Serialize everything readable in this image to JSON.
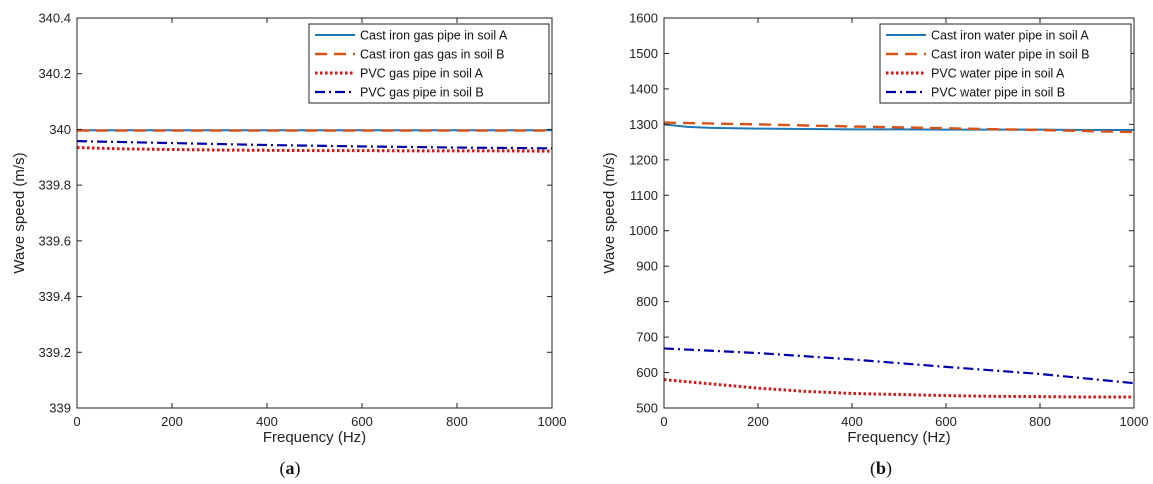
{
  "chart_data": [
    {
      "type": "line",
      "panel_label": {
        "open": "(",
        "letter": "a",
        "close": ")"
      },
      "xlabel": "Frequency (Hz)",
      "ylabel": "Wave speed (m/s)",
      "xlim": [
        0,
        1000
      ],
      "ylim": [
        339,
        340.4
      ],
      "xticks": [
        "0",
        "200",
        "400",
        "600",
        "800",
        "1000"
      ],
      "yticks": [
        "339",
        "339.2",
        "339.4",
        "339.6",
        "339.8",
        "340",
        "340.2",
        "340.4"
      ],
      "grid": false,
      "legend_position": "top-right",
      "series": [
        {
          "name": "Cast iron gas pipe in soil A",
          "color": "#1f77b4",
          "style": "solid",
          "x": [
            0,
            200,
            400,
            600,
            800,
            1000
          ],
          "y": [
            339.997,
            339.997,
            339.997,
            339.997,
            339.997,
            339.997
          ]
        },
        {
          "name": "Cast iron gas gas in soil B",
          "color": "#d95319",
          "style": "dashed",
          "x": [
            0,
            200,
            400,
            600,
            800,
            1000
          ],
          "y": [
            339.996,
            339.996,
            339.996,
            339.996,
            339.996,
            339.996
          ]
        },
        {
          "name": "PVC gas pipe in soil A",
          "color": "#dd1111",
          "style": "dotted",
          "x": [
            0,
            100,
            200,
            300,
            400,
            500,
            600,
            700,
            800,
            900,
            1000
          ],
          "y": [
            339.935,
            339.93,
            339.928,
            339.926,
            339.925,
            339.924,
            339.924,
            339.923,
            339.923,
            339.923,
            339.922
          ]
        },
        {
          "name": "PVC gas pipe in soil B",
          "color": "#0000aa",
          "style": "dashdot",
          "x": [
            0,
            200,
            400,
            600,
            800,
            1000
          ],
          "y": [
            339.958,
            339.951,
            339.944,
            339.939,
            339.935,
            339.932
          ]
        }
      ]
    },
    {
      "type": "line",
      "panel_label": {
        "open": "(",
        "letter": "b",
        "close": ")"
      },
      "xlabel": "Frequency (Hz)",
      "ylabel": "Wave speed (m/s)",
      "xlim": [
        0,
        1000
      ],
      "ylim": [
        500,
        1600
      ],
      "xticks": [
        "0",
        "200",
        "400",
        "600",
        "800",
        "1000"
      ],
      "yticks": [
        "500",
        "600",
        "700",
        "800",
        "900",
        "1000",
        "1100",
        "1200",
        "1300",
        "1400",
        "1500",
        "1600"
      ],
      "grid": false,
      "legend_position": "top-right",
      "series": [
        {
          "name": "Cast iron water pipe in soil A",
          "color": "#1f77b4",
          "style": "solid",
          "x": [
            0,
            50,
            100,
            200,
            300,
            400,
            500,
            600,
            700,
            800,
            900,
            1000
          ],
          "y": [
            1300,
            1293,
            1290,
            1288,
            1287,
            1286,
            1286,
            1285,
            1285,
            1285,
            1284,
            1284
          ]
        },
        {
          "name": "Cast iron water pipe in soil B",
          "color": "#d95319",
          "style": "dashed",
          "x": [
            0,
            200,
            400,
            600,
            800,
            1000
          ],
          "y": [
            1305,
            1300,
            1294,
            1289,
            1284,
            1278
          ]
        },
        {
          "name": "PVC water pipe in soil A",
          "color": "#dd1111",
          "style": "dotted",
          "x": [
            0,
            100,
            200,
            300,
            400,
            500,
            600,
            700,
            800,
            900,
            1000
          ],
          "y": [
            580,
            568,
            556,
            547,
            541,
            538,
            535,
            533,
            532,
            531,
            531
          ]
        },
        {
          "name": "PVC water pipe in soil B",
          "color": "#0000aa",
          "style": "dashdot",
          "x": [
            0,
            200,
            400,
            600,
            800,
            1000
          ],
          "y": [
            668,
            655,
            637,
            616,
            596,
            570
          ]
        }
      ]
    }
  ]
}
